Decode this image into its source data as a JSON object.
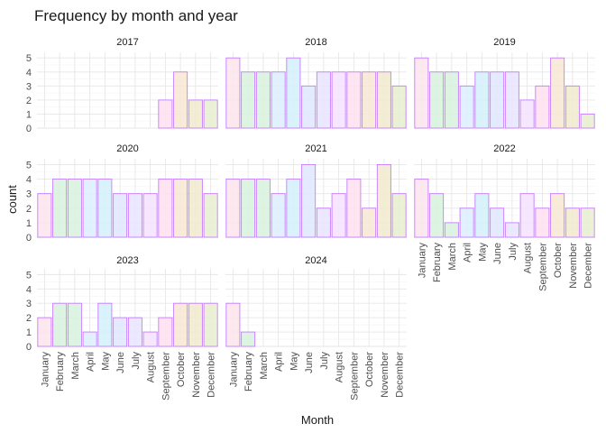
{
  "chart_data": {
    "type": "bar",
    "title": "Frequency by month and year",
    "xlabel": "Month",
    "ylabel": "count",
    "ylim": [
      0,
      5.4
    ],
    "yticks": [
      0,
      1,
      2,
      3,
      4,
      5
    ],
    "grid": true,
    "layout": "facets in 3 columns",
    "categories": [
      "January",
      "February",
      "March",
      "April",
      "May",
      "June",
      "July",
      "August",
      "September",
      "October",
      "November",
      "December"
    ],
    "bar_fill_colors": [
      "#FCE4EC",
      "#D8F2DE",
      "#D8F2DE",
      "#DDEEFF",
      "#D4F0FA",
      "#E0E8FF",
      "#E8E4FF",
      "#F4E2FF",
      "#FFE0F0",
      "#F8E8D2",
      "#F0EACC",
      "#E8EED0"
    ],
    "bar_outline_color": "#C77CFF",
    "panels": [
      {
        "label": "2017",
        "values": [
          null,
          null,
          null,
          null,
          null,
          null,
          null,
          null,
          2,
          4,
          2,
          2
        ]
      },
      {
        "label": "2018",
        "values": [
          5,
          4,
          4,
          4,
          5,
          3,
          4,
          4,
          4,
          4,
          4,
          3
        ]
      },
      {
        "label": "2019",
        "values": [
          5,
          4,
          4,
          3,
          4,
          4,
          4,
          2,
          3,
          5,
          3,
          1
        ]
      },
      {
        "label": "2020",
        "values": [
          3,
          4,
          4,
          4,
          4,
          3,
          3,
          3,
          4,
          4,
          4,
          3
        ]
      },
      {
        "label": "2021",
        "values": [
          4,
          4,
          4,
          3,
          4,
          5,
          2,
          3,
          4,
          2,
          5,
          3
        ]
      },
      {
        "label": "2022",
        "values": [
          4,
          3,
          1,
          2,
          3,
          2,
          1,
          3,
          2,
          3,
          2,
          2
        ]
      },
      {
        "label": "2023",
        "values": [
          2,
          3,
          3,
          1,
          3,
          2,
          2,
          1,
          2,
          3,
          3,
          3
        ]
      },
      {
        "label": "2024",
        "values": [
          3,
          1,
          null,
          null,
          null,
          null,
          null,
          null,
          null,
          null,
          null,
          null
        ]
      }
    ]
  }
}
